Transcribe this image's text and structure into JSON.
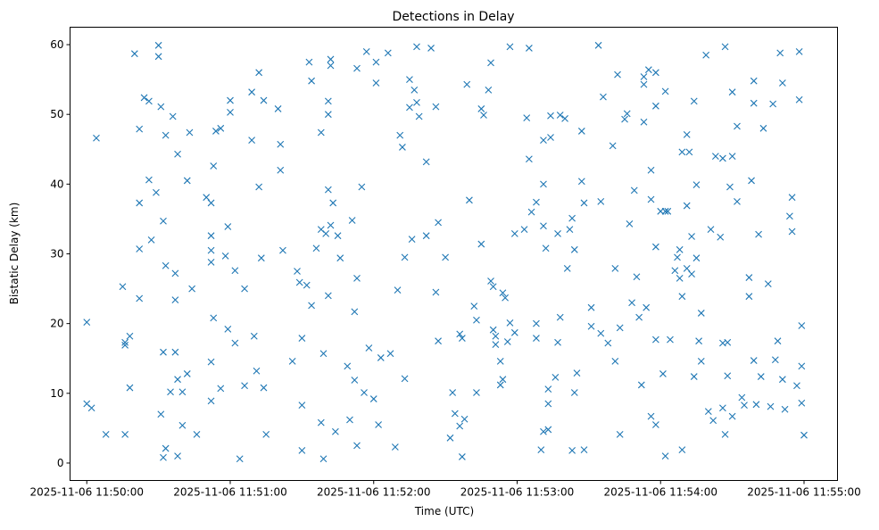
{
  "chart_data": {
    "type": "scatter",
    "title": "Detections in Delay",
    "xlabel": "Time (UTC)",
    "ylabel": "Bistatic Delay (km)",
    "x_unit": "seconds after 2025-11-06 11:50:00",
    "xlim": [
      -7,
      314
    ],
    "ylim": [
      -2.5,
      62.5
    ],
    "x_ticks": [
      0,
      60,
      120,
      180,
      240,
      300
    ],
    "x_tick_labels": [
      "2025-11-06 11:50:00",
      "2025-11-06 11:51:00",
      "2025-11-06 11:52:00",
      "2025-11-06 11:53:00",
      "2025-11-06 11:54:00",
      "2025-11-06 11:55:00"
    ],
    "y_ticks": [
      0,
      10,
      20,
      30,
      40,
      50,
      60
    ],
    "y_tick_labels": [
      "0",
      "10",
      "20",
      "30",
      "40",
      "50",
      "60"
    ],
    "marker": "x",
    "color": "#1f77b4",
    "grid": false,
    "points": [
      [
        0,
        20.2
      ],
      [
        0,
        8.5
      ],
      [
        2,
        7.9
      ],
      [
        4,
        46.6
      ],
      [
        8,
        4.1
      ],
      [
        15,
        25.3
      ],
      [
        16,
        16.9
      ],
      [
        16,
        17.3
      ],
      [
        16,
        4.1
      ],
      [
        18,
        10.8
      ],
      [
        18,
        18.2
      ],
      [
        20,
        58.7
      ],
      [
        22,
        30.7
      ],
      [
        22,
        23.6
      ],
      [
        22,
        47.9
      ],
      [
        22,
        37.3
      ],
      [
        24,
        52.4
      ],
      [
        26,
        51.9
      ],
      [
        26,
        40.6
      ],
      [
        27,
        32
      ],
      [
        29,
        38.8
      ],
      [
        30,
        59.9
      ],
      [
        30,
        58.3
      ],
      [
        31,
        51.1
      ],
      [
        31,
        7
      ],
      [
        32,
        34.7
      ],
      [
        32,
        15.9
      ],
      [
        33,
        47
      ],
      [
        33,
        28.3
      ],
      [
        33,
        2.1
      ],
      [
        32,
        0.8
      ],
      [
        35,
        10.2
      ],
      [
        36,
        49.7
      ],
      [
        37,
        15.9
      ],
      [
        37,
        27.2
      ],
      [
        37,
        23.4
      ],
      [
        38,
        44.3
      ],
      [
        38,
        12
      ],
      [
        38,
        1.0
      ],
      [
        40,
        5.4
      ],
      [
        40,
        10.2
      ],
      [
        42,
        12.8
      ],
      [
        42,
        40.5
      ],
      [
        43,
        47.4
      ],
      [
        44,
        25
      ],
      [
        46,
        4.1
      ],
      [
        50,
        38.1
      ],
      [
        52,
        37.3
      ],
      [
        52,
        14.5
      ],
      [
        52,
        8.9
      ],
      [
        52,
        28.8
      ],
      [
        52,
        30.5
      ],
      [
        52,
        32.6
      ],
      [
        53,
        20.8
      ],
      [
        53,
        42.6
      ],
      [
        54,
        47.6
      ],
      [
        56,
        10.7
      ],
      [
        56,
        48
      ],
      [
        58,
        29.7
      ],
      [
        59,
        19.2
      ],
      [
        59,
        33.9
      ],
      [
        60,
        50.3
      ],
      [
        60,
        52
      ],
      [
        62,
        27.6
      ],
      [
        62,
        17.2
      ],
      [
        64,
        0.6
      ],
      [
        66,
        11.1
      ],
      [
        66,
        25
      ],
      [
        69,
        46.3
      ],
      [
        69,
        53.2
      ],
      [
        70,
        18.2
      ],
      [
        71,
        13.2
      ],
      [
        72,
        56
      ],
      [
        72,
        39.6
      ],
      [
        73,
        29.4
      ],
      [
        74,
        52
      ],
      [
        74,
        10.8
      ],
      [
        75,
        4.1
      ],
      [
        80,
        50.8
      ],
      [
        81,
        42
      ],
      [
        81,
        45.7
      ],
      [
        82,
        30.5
      ],
      [
        86,
        14.6
      ],
      [
        88,
        27.5
      ],
      [
        89,
        25.9
      ],
      [
        90,
        17.9
      ],
      [
        90,
        8.3
      ],
      [
        90,
        1.8
      ],
      [
        92,
        25.5
      ],
      [
        93,
        57.5
      ],
      [
        94,
        54.8
      ],
      [
        94,
        22.6
      ],
      [
        96,
        30.8
      ],
      [
        98,
        47.4
      ],
      [
        98,
        33.5
      ],
      [
        98,
        5.8
      ],
      [
        99,
        0.6
      ],
      [
        99,
        15.7
      ],
      [
        100,
        32.9
      ],
      [
        101,
        39.2
      ],
      [
        101,
        24
      ],
      [
        101,
        50
      ],
      [
        101,
        51.9
      ],
      [
        102,
        57.9
      ],
      [
        102,
        57
      ],
      [
        102,
        34.1
      ],
      [
        103,
        37.3
      ],
      [
        104,
        4.5
      ],
      [
        105,
        32.6
      ],
      [
        106,
        29.4
      ],
      [
        109,
        13.9
      ],
      [
        110,
        6.2
      ],
      [
        111,
        34.8
      ],
      [
        112,
        11.9
      ],
      [
        112,
        21.7
      ],
      [
        113,
        2.5
      ],
      [
        113,
        26.5
      ],
      [
        113,
        56.6
      ],
      [
        115,
        39.6
      ],
      [
        116,
        10.1
      ],
      [
        117,
        59
      ],
      [
        118,
        16.5
      ],
      [
        120,
        9.2
      ],
      [
        121,
        57.5
      ],
      [
        121,
        54.5
      ],
      [
        122,
        5.5
      ],
      [
        123,
        15.1
      ],
      [
        126,
        58.8
      ],
      [
        127,
        15.7
      ],
      [
        129,
        2.3
      ],
      [
        130,
        24.8
      ],
      [
        131,
        47
      ],
      [
        132,
        45.3
      ],
      [
        133,
        29.5
      ],
      [
        133,
        12.1
      ],
      [
        135,
        55
      ],
      [
        135,
        51
      ],
      [
        136,
        32.1
      ],
      [
        137,
        53.5
      ],
      [
        138,
        59.7
      ],
      [
        138,
        51.7
      ],
      [
        139,
        49.7
      ],
      [
        142,
        43.2
      ],
      [
        142,
        32.6
      ],
      [
        144,
        59.5
      ],
      [
        146,
        51.1
      ],
      [
        146,
        24.5
      ],
      [
        147,
        17.5
      ],
      [
        147,
        34.5
      ],
      [
        150,
        29.5
      ],
      [
        152,
        3.6
      ],
      [
        153,
        10.1
      ],
      [
        154,
        7.1
      ],
      [
        156,
        5.3
      ],
      [
        156,
        18.5
      ],
      [
        157,
        0.9
      ],
      [
        157,
        17.9
      ],
      [
        158,
        6.3
      ],
      [
        159,
        54.3
      ],
      [
        160,
        37.7
      ],
      [
        162,
        22.5
      ],
      [
        163,
        20.5
      ],
      [
        163,
        10.1
      ],
      [
        165,
        50.8
      ],
      [
        165,
        31.4
      ],
      [
        166,
        49.9
      ],
      [
        168,
        53.5
      ],
      [
        169,
        57.4
      ],
      [
        169,
        26.1
      ],
      [
        170,
        25.3
      ],
      [
        170,
        19.1
      ],
      [
        171,
        18.2
      ],
      [
        171,
        17.0
      ],
      [
        173,
        14.6
      ],
      [
        173,
        11.2
      ],
      [
        174,
        24.4
      ],
      [
        174,
        12
      ],
      [
        175,
        23.7
      ],
      [
        176,
        17.4
      ],
      [
        177,
        59.7
      ],
      [
        177,
        20.1
      ],
      [
        179,
        32.9
      ],
      [
        179,
        18.7
      ],
      [
        183,
        33.5
      ],
      [
        184,
        49.5
      ],
      [
        185,
        43.6
      ],
      [
        185,
        59.5
      ],
      [
        186,
        36
      ],
      [
        188,
        37.4
      ],
      [
        188,
        20
      ],
      [
        188,
        17.9
      ],
      [
        190,
        1.9
      ],
      [
        191,
        46.3
      ],
      [
        191,
        40
      ],
      [
        191,
        34
      ],
      [
        191,
        4.5
      ],
      [
        192,
        30.8
      ],
      [
        193,
        8.5
      ],
      [
        193,
        10.6
      ],
      [
        193,
        4.8
      ],
      [
        194,
        49.8
      ],
      [
        194,
        46.7
      ],
      [
        196,
        12.3
      ],
      [
        197,
        32.9
      ],
      [
        197,
        17.3
      ],
      [
        198,
        49.9
      ],
      [
        198,
        20.9
      ],
      [
        200,
        49.4
      ],
      [
        201,
        27.9
      ],
      [
        202,
        33.5
      ],
      [
        203,
        35.1
      ],
      [
        203,
        1.8
      ],
      [
        204,
        10.1
      ],
      [
        204,
        30.6
      ],
      [
        205,
        12.9
      ],
      [
        207,
        47.6
      ],
      [
        207,
        40.4
      ],
      [
        208,
        1.9
      ],
      [
        208,
        37.3
      ],
      [
        211,
        19.6
      ],
      [
        211,
        22.3
      ],
      [
        214,
        59.9
      ],
      [
        215,
        37.5
      ],
      [
        215,
        18.6
      ],
      [
        216,
        52.5
      ],
      [
        218,
        17.2
      ],
      [
        220,
        45.5
      ],
      [
        221,
        14.6
      ],
      [
        221,
        27.9
      ],
      [
        222,
        55.7
      ],
      [
        223,
        19.4
      ],
      [
        223,
        4.1
      ],
      [
        225,
        49.3
      ],
      [
        226,
        50.1
      ],
      [
        227,
        34.3
      ],
      [
        228,
        23
      ],
      [
        229,
        39.1
      ],
      [
        230,
        26.7
      ],
      [
        231,
        20.9
      ],
      [
        232,
        11.2
      ],
      [
        233,
        55.4
      ],
      [
        233,
        54.3
      ],
      [
        233,
        48.9
      ],
      [
        234,
        22.3
      ],
      [
        235,
        56.4
      ],
      [
        236,
        42
      ],
      [
        236,
        6.7
      ],
      [
        236,
        37.8
      ],
      [
        238,
        31
      ],
      [
        238,
        5.5
      ],
      [
        238,
        17.7
      ],
      [
        238,
        51.2
      ],
      [
        238,
        56
      ],
      [
        240,
        36.1
      ],
      [
        241,
        12.8
      ],
      [
        242,
        1
      ],
      [
        242,
        36.1
      ],
      [
        242,
        53.3
      ],
      [
        243,
        36.1
      ],
      [
        244,
        17.7
      ],
      [
        246,
        27.6
      ],
      [
        247,
        29.5
      ],
      [
        248,
        26.5
      ],
      [
        248,
        30.6
      ],
      [
        249,
        23.9
      ],
      [
        249,
        44.6
      ],
      [
        249,
        1.9
      ],
      [
        251,
        27.9
      ],
      [
        251,
        36.9
      ],
      [
        251,
        47.1
      ],
      [
        252,
        44.6
      ],
      [
        253,
        32.5
      ],
      [
        253,
        27.1
      ],
      [
        254,
        51.9
      ],
      [
        254,
        12.4
      ],
      [
        255,
        29.4
      ],
      [
        255,
        39.9
      ],
      [
        256,
        17.5
      ],
      [
        257,
        21.5
      ],
      [
        257,
        14.6
      ],
      [
        259,
        58.5
      ],
      [
        260,
        7.4
      ],
      [
        261,
        33.5
      ],
      [
        262,
        6.1
      ],
      [
        263,
        44
      ],
      [
        266,
        7.9
      ],
      [
        265,
        32.4
      ],
      [
        266,
        43.7
      ],
      [
        266,
        17.2
      ],
      [
        267,
        4.1
      ],
      [
        267,
        59.7
      ],
      [
        268,
        12.5
      ],
      [
        268,
        17.3
      ],
      [
        269,
        39.6
      ],
      [
        270,
        6.7
      ],
      [
        270,
        44
      ],
      [
        270,
        53.2
      ],
      [
        272,
        48.3
      ],
      [
        272,
        37.5
      ],
      [
        274,
        9.4
      ],
      [
        275,
        8.3
      ],
      [
        277,
        23.9
      ],
      [
        277,
        26.6
      ],
      [
        278,
        40.5
      ],
      [
        279,
        54.8
      ],
      [
        279,
        51.6
      ],
      [
        279,
        14.7
      ],
      [
        280,
        8.4
      ],
      [
        281,
        32.8
      ],
      [
        282,
        12.4
      ],
      [
        283,
        48
      ],
      [
        285,
        25.7
      ],
      [
        286,
        8.1
      ],
      [
        287,
        51.5
      ],
      [
        288,
        14.8
      ],
      [
        289,
        17.5
      ],
      [
        290,
        58.8
      ],
      [
        291,
        54.5
      ],
      [
        291,
        12
      ],
      [
        292,
        7.7
      ],
      [
        294,
        35.4
      ],
      [
        295,
        33.2
      ],
      [
        295,
        38.1
      ],
      [
        297,
        11.1
      ],
      [
        298,
        59
      ],
      [
        298,
        52.1
      ],
      [
        299,
        13.9
      ],
      [
        299,
        19.7
      ],
      [
        299,
        8.6
      ],
      [
        300,
        4
      ]
    ]
  }
}
